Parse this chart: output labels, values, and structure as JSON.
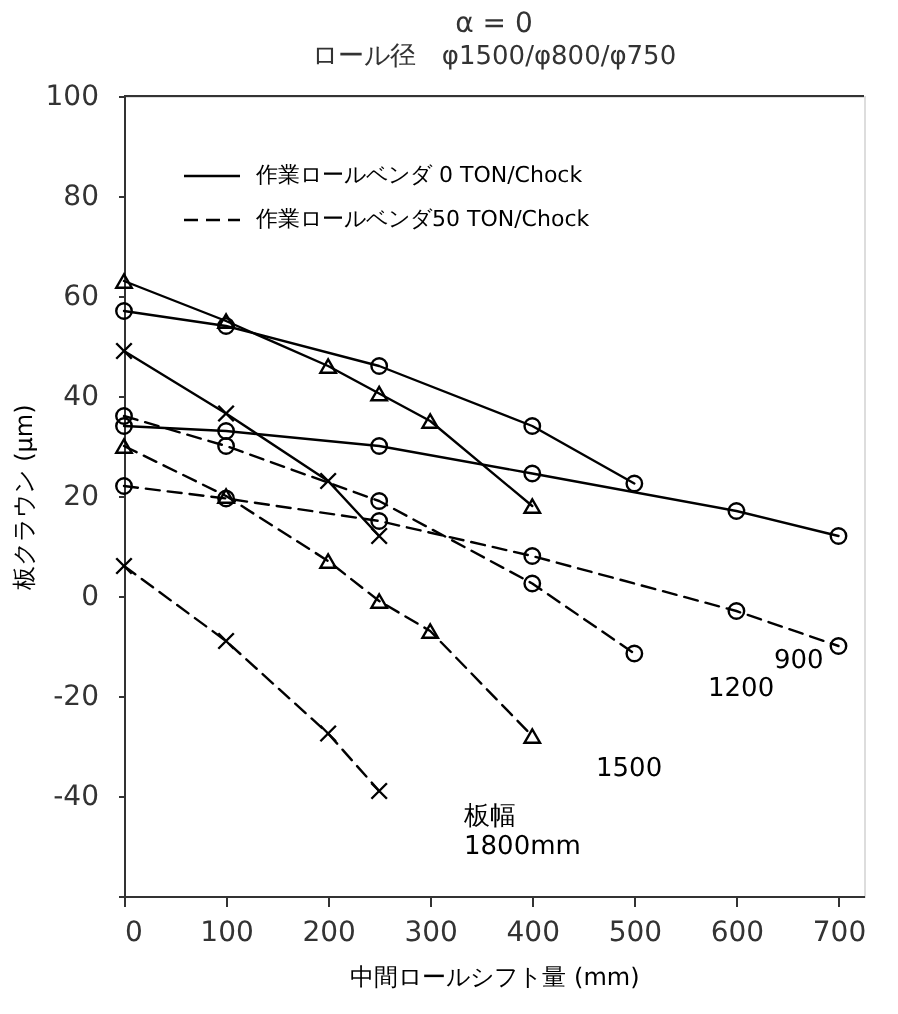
{
  "chart_data": {
    "type": "line",
    "title": "α = 0",
    "subtitle": "ロール径　φ1500/φ800/φ750",
    "xlabel": "中間ロールシフト量 (mm)",
    "ylabel": "板クラウン (μm)",
    "xlim": [
      0,
      725
    ],
    "xticks": [
      0,
      100,
      200,
      300,
      400,
      500,
      600,
      700
    ],
    "ylim": [
      -60,
      100
    ],
    "yticks": [
      {
        "value": -60,
        "label": null
      },
      -40,
      -20,
      0,
      20,
      40,
      60,
      80,
      100
    ],
    "grid": false,
    "legend": "top left",
    "series": [
      {
        "name": "作業ロールベンダ 0 TON/Chock",
        "color": "#000000",
        "line_style": "solid",
        "marker": "circle",
        "x": [
          0,
          100,
          250,
          400,
          600,
          700
        ],
        "values": [
          34,
          33,
          30,
          24.5,
          17,
          12
        ]
      },
      {
        "color": "#000000",
        "line_style": "solid",
        "marker": "circle",
        "x": [
          0,
          100,
          250,
          400,
          500
        ],
        "values": [
          57,
          54,
          46,
          34,
          22.5
        ]
      },
      {
        "color": "#000000",
        "line_style": "solid",
        "marker": "triangle",
        "x": [
          0,
          100,
          200,
          250,
          300,
          400
        ],
        "values": [
          63,
          55,
          46,
          40.5,
          35,
          18
        ]
      },
      {
        "color": "#000000",
        "line_style": "solid",
        "marker": "cross",
        "x": [
          0,
          100,
          200,
          250
        ],
        "values": [
          49,
          36.5,
          23,
          12
        ]
      },
      {
        "name": "作業ロールベンダ50 TON/Chock",
        "color": "#000000",
        "line_style": "dashed",
        "marker": "circle",
        "x": [
          0,
          100,
          250,
          400,
          600,
          700
        ],
        "values": [
          22,
          19.5,
          15,
          8,
          -3,
          -10
        ]
      },
      {
        "color": "#000000",
        "line_style": "dashed",
        "marker": "circle",
        "x": [
          0,
          100,
          250,
          400,
          500
        ],
        "values": [
          36,
          30,
          19,
          2.5,
          -11.5
        ]
      },
      {
        "color": "#000000",
        "line_style": "dashed",
        "marker": "triangle",
        "x": [
          0,
          100,
          200,
          250,
          300,
          400
        ],
        "values": [
          30,
          20,
          7,
          -1,
          -7,
          -28
        ]
      },
      {
        "color": "#000000",
        "line_style": "dashed",
        "marker": "cross",
        "x": [
          0,
          100,
          200,
          250
        ],
        "values": [
          6,
          -9,
          -27.5,
          -39
        ]
      }
    ],
    "annotations": [
      "900",
      "1200",
      "1500",
      "板幅\n1800mm"
    ]
  }
}
